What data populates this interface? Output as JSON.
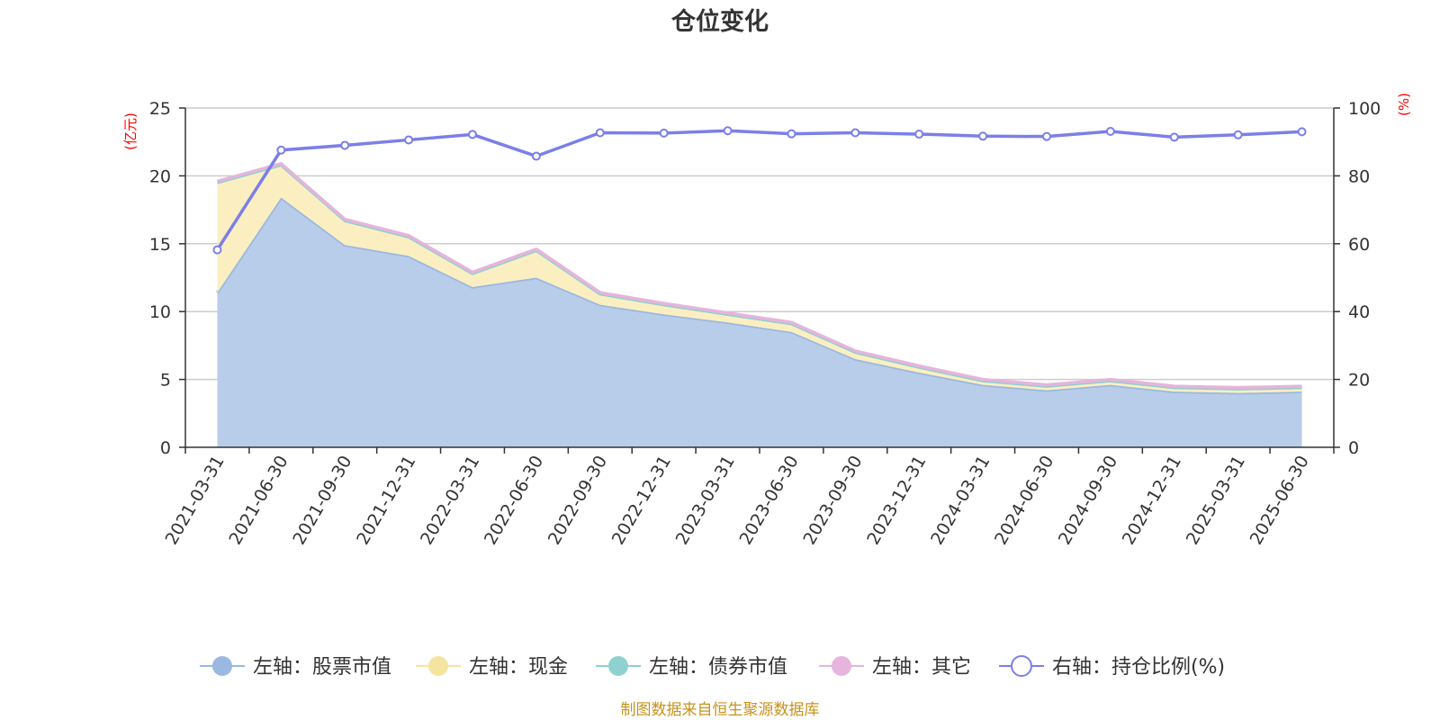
{
  "chart_data": {
    "type": "area",
    "title": "仓位变化",
    "left_axis": {
      "unit": "(亿元)",
      "ylim": [
        0,
        25
      ],
      "ticks": [
        "0",
        "5",
        "10",
        "15",
        "20",
        "25"
      ]
    },
    "right_axis": {
      "unit": "(%)",
      "ylim": [
        0,
        100
      ],
      "ticks": [
        "0",
        "20",
        "40",
        "60",
        "80",
        "100"
      ]
    },
    "categories": [
      "2021-03-31",
      "2021-06-30",
      "2021-09-30",
      "2021-12-31",
      "2022-03-31",
      "2022-06-30",
      "2022-09-30",
      "2022-12-31",
      "2023-03-31",
      "2023-06-30",
      "2023-09-30",
      "2023-12-31",
      "2024-03-31",
      "2024-06-30",
      "2024-09-30",
      "2024-12-31",
      "2025-03-31",
      "2025-06-30"
    ],
    "grid": true,
    "legend_placement": "bottom",
    "series": [
      {
        "name": "左轴：股票市值",
        "axis": "left",
        "type": "area",
        "color": "#9bb8e0",
        "fill": "#b8cdea",
        "values": [
          11.4,
          18.4,
          14.9,
          14.1,
          11.8,
          12.5,
          10.5,
          9.8,
          9.2,
          8.5,
          6.5,
          5.5,
          4.6,
          4.2,
          4.6,
          4.1,
          4.0,
          4.1
        ]
      },
      {
        "name": "左轴：现金",
        "axis": "left",
        "type": "area",
        "color": "#f5e4a0",
        "fill": "#fbefc1",
        "values": [
          8.1,
          2.4,
          1.8,
          1.4,
          1.0,
          2.0,
          0.8,
          0.7,
          0.6,
          0.6,
          0.5,
          0.4,
          0.3,
          0.3,
          0.3,
          0.3,
          0.3,
          0.3
        ]
      },
      {
        "name": "左轴：债券市值",
        "axis": "left",
        "type": "area",
        "color": "#8fd0d0",
        "fill": "#b5e0e0",
        "values": [
          0,
          0,
          0,
          0,
          0,
          0,
          0,
          0,
          0,
          0,
          0,
          0,
          0,
          0,
          0,
          0,
          0,
          0
        ]
      },
      {
        "name": "左轴：其它",
        "axis": "left",
        "type": "area",
        "color": "#e6b4dc",
        "fill": "#efcbe8",
        "values": [
          0.1,
          0.1,
          0.1,
          0.1,
          0.1,
          0.1,
          0.1,
          0.1,
          0.1,
          0.1,
          0.1,
          0.1,
          0.1,
          0.1,
          0.1,
          0.1,
          0.1,
          0.1
        ]
      },
      {
        "name": "右轴：持仓比例(%)",
        "axis": "right",
        "type": "line",
        "color": "#7b7fe8",
        "values": [
          58.2,
          87.6,
          89.0,
          90.6,
          92.2,
          85.8,
          92.7,
          92.6,
          93.3,
          92.4,
          92.7,
          92.3,
          91.7,
          91.6,
          93.1,
          91.4,
          92.1,
          93.0
        ]
      }
    ]
  },
  "footer": "制图数据来自恒生聚源数据库"
}
